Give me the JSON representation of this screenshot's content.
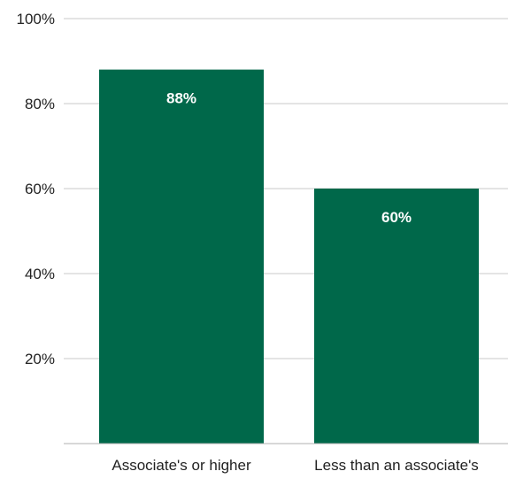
{
  "chart_data": {
    "type": "bar",
    "categories": [
      "Associate's or higher",
      "Less than an associate's"
    ],
    "values": [
      88,
      60
    ],
    "data_labels": [
      "88%",
      "60%"
    ],
    "ylim": [
      0,
      100
    ],
    "yticks": [
      20,
      40,
      60,
      80,
      100
    ],
    "ytick_labels": [
      "20%",
      "40%",
      "60%",
      "80%",
      "100%"
    ],
    "grid": true,
    "legend": "none",
    "colors": {
      "bar": "#00684a",
      "grid": "#c8c8c8",
      "axis": "#b0b0b0",
      "text": "#222222",
      "data_label": "#ffffff"
    }
  }
}
